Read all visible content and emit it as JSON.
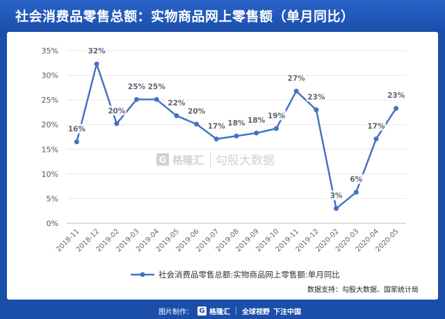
{
  "title": "社会消费品零售总额：实物商品网上零售额（单月同比）",
  "watermark": {
    "brand": "格隆汇",
    "sub": "勾股大数据"
  },
  "source_label": "数据支持：勾股大数据、国家统计局",
  "footer": {
    "made_by": "图片制作：",
    "brand": "格隆汇",
    "slogan_a": "全球视野",
    "slogan_b": "下注中国"
  },
  "colors": {
    "line": "#4472c4",
    "header": "#1a4ea8",
    "grid": "#e6e6e6"
  },
  "chart_data": {
    "type": "line",
    "title": "",
    "xlabel": "",
    "ylabel": "",
    "ylim": [
      0,
      35
    ],
    "y_ticks": [
      "0%",
      "5%",
      "10%",
      "15%",
      "20%",
      "25%",
      "30%",
      "35%"
    ],
    "categories": [
      "2018-11",
      "2018-12",
      "2019-02",
      "2019-03",
      "2019-04",
      "2019-05",
      "2019-06",
      "2019-07",
      "2019-08",
      "2019-09",
      "2019-10",
      "2019-11",
      "2019-12",
      "2020-02",
      "2020-03",
      "2020-04",
      "2020-05"
    ],
    "series": [
      {
        "name": "社会消费品零售总额:实物商品网上零售额:单月同比",
        "values": [
          16.5,
          32.3,
          20.2,
          25.1,
          25.1,
          21.8,
          20.1,
          17.1,
          17.7,
          18.3,
          19.2,
          26.8,
          23.0,
          3.0,
          6.3,
          17.1,
          23.3
        ],
        "labels": [
          "16%",
          "32%",
          "20%",
          "25%",
          "25%",
          "22%",
          "20%",
          "17%",
          "18%",
          "18%",
          "19%",
          "27%",
          "23%",
          "3%",
          "6%",
          "17%",
          "23%"
        ]
      }
    ],
    "grid": true,
    "legend": "bottom"
  }
}
